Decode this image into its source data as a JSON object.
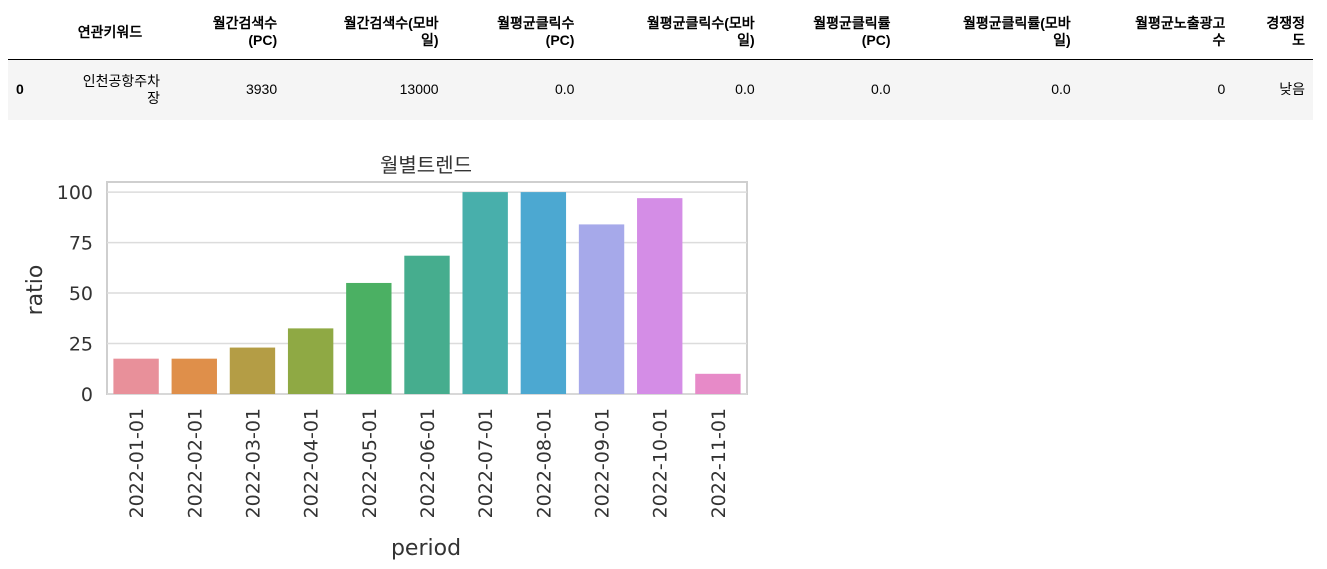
{
  "table": {
    "columns": [
      "",
      "연관키워드",
      "월간검색수\n(PC)",
      "월간검색수(모바\n일)",
      "월평균클릭수\n(PC)",
      "월평균클릭수(모바\n일)",
      "월평균클릭률\n(PC)",
      "월평균클릭률(모바\n일)",
      "월평균노출광고\n수",
      "경쟁정\n도"
    ],
    "rows": [
      {
        "index": "0",
        "cells": [
          "인천공항주차\n장",
          "3930",
          "13000",
          "0.0",
          "0.0",
          "0.0",
          "0.0",
          "0",
          "낮음"
        ]
      }
    ]
  },
  "chart_data": {
    "type": "bar",
    "title": "월별트렌드",
    "xlabel": "period",
    "ylabel": "ratio",
    "categories": [
      "2022-01-01",
      "2022-02-01",
      "2022-03-01",
      "2022-04-01",
      "2022-05-01",
      "2022-06-01",
      "2022-07-01",
      "2022-08-01",
      "2022-09-01",
      "2022-10-01",
      "2022-11-01"
    ],
    "values": [
      17.5,
      17.5,
      23,
      32.5,
      55,
      68.5,
      100,
      100,
      84,
      97,
      10
    ],
    "colors": [
      "#e8909a",
      "#df8f4a",
      "#b49d45",
      "#8fa944",
      "#4bb063",
      "#46ad8e",
      "#48afab",
      "#4ca8d1",
      "#a6a9ea",
      "#d48de6",
      "#e78ac8"
    ],
    "ylim": [
      0,
      105
    ],
    "yticks": [
      0,
      25,
      50,
      75,
      100
    ],
    "grid": true,
    "legend": "none"
  }
}
